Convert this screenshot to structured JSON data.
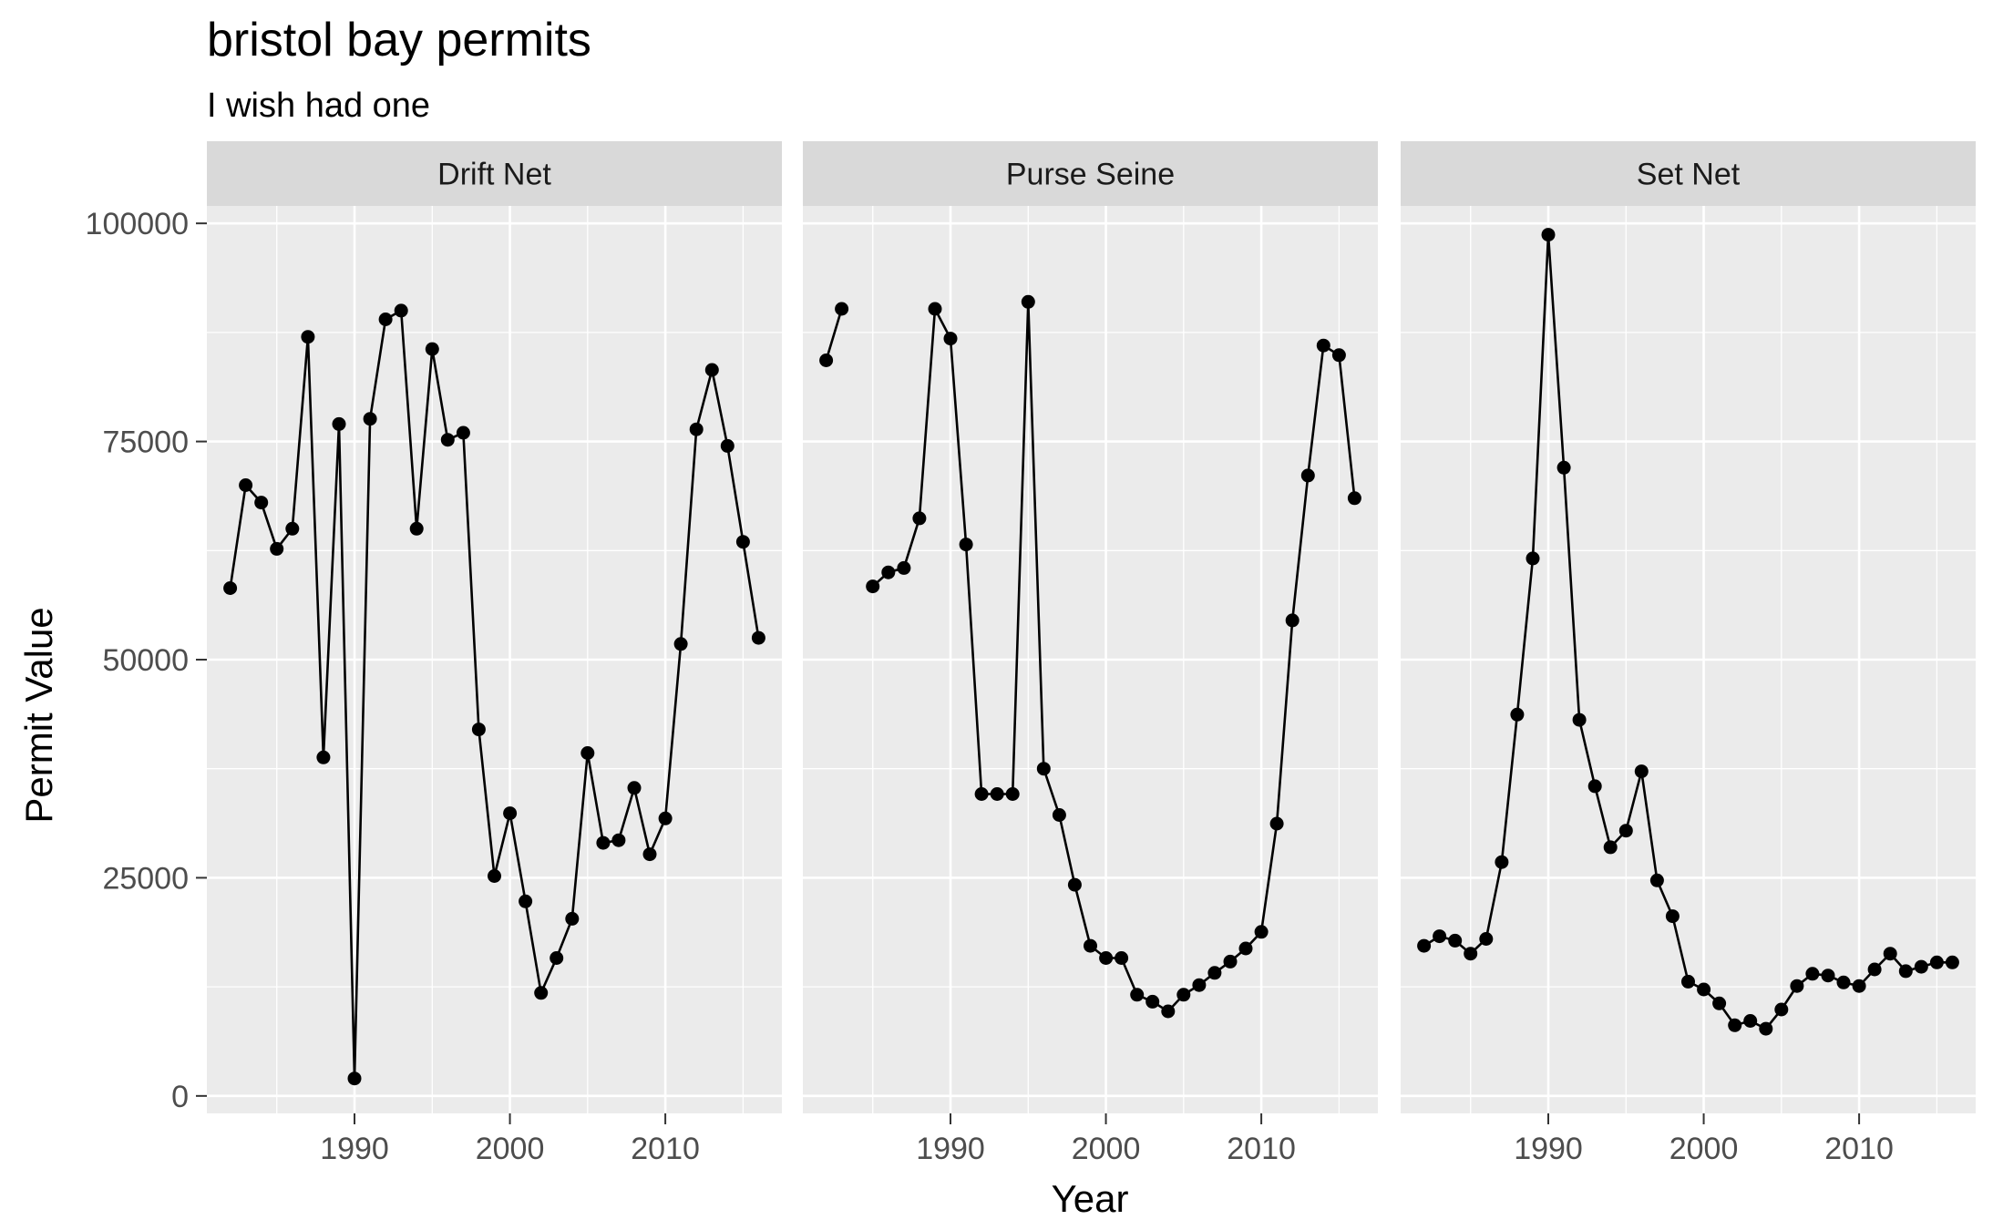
{
  "chart_data": {
    "type": "line",
    "title": "bristol bay permits",
    "subtitle": "I wish had one",
    "xlabel": "Year",
    "ylabel": "Permit Value",
    "xlim": [
      1980.5,
      2017.5
    ],
    "ylim": [
      -2000,
      102000
    ],
    "x_ticks": [
      1990,
      2000,
      2010
    ],
    "y_ticks": [
      0,
      25000,
      50000,
      75000,
      100000
    ],
    "grid": true,
    "facets": [
      {
        "label": "Drift Net",
        "x": [
          1982,
          1983,
          1984,
          1985,
          1986,
          1987,
          1988,
          1989,
          1990,
          1991,
          1992,
          1993,
          1994,
          1995,
          1996,
          1997,
          1998,
          1999,
          2000,
          2001,
          2002,
          2003,
          2004,
          2005,
          2006,
          2007,
          2008,
          2009,
          2010,
          2011,
          2012,
          2013,
          2014,
          2015,
          2016
        ],
        "y": [
          58200,
          70000,
          68000,
          62700,
          65000,
          87000,
          38800,
          77000,
          2000,
          77600,
          89000,
          90000,
          65000,
          85600,
          75200,
          76000,
          42000,
          25200,
          32400,
          22300,
          11800,
          15800,
          20300,
          39300,
          29000,
          29300,
          35300,
          27700,
          31800,
          51800,
          76400,
          83200,
          74500,
          63500,
          52500
        ]
      },
      {
        "label": "Purse Seine",
        "x": [
          1982,
          1983,
          1985,
          1986,
          1987,
          1988,
          1989,
          1990,
          1991,
          1992,
          1993,
          1994,
          1995,
          1996,
          1997,
          1998,
          1999,
          2000,
          2001,
          2002,
          2003,
          2004,
          2005,
          2006,
          2007,
          2008,
          2009,
          2010,
          2011,
          2012,
          2013,
          2014,
          2015,
          2016
        ],
        "y": [
          84300,
          90200,
          58400,
          60000,
          60500,
          66200,
          90200,
          86800,
          63200,
          34600,
          34600,
          34600,
          91000,
          37500,
          32200,
          24200,
          17200,
          15800,
          15800,
          11600,
          10800,
          9700,
          11600,
          12700,
          14100,
          15400,
          16900,
          18800,
          31200,
          54500,
          71100,
          86000,
          84900,
          68500
        ],
        "segments": [
          [
            0,
            1
          ],
          [
            2,
            33
          ]
        ]
      },
      {
        "label": "Set Net",
        "x": [
          1982,
          1983,
          1984,
          1985,
          1986,
          1987,
          1988,
          1989,
          1990,
          1991,
          1992,
          1993,
          1994,
          1995,
          1996,
          1997,
          1998,
          1999,
          2000,
          2001,
          2002,
          2003,
          2004,
          2005,
          2006,
          2007,
          2008,
          2009,
          2010,
          2011,
          2012,
          2013,
          2014,
          2015,
          2016
        ],
        "y": [
          17200,
          18300,
          17800,
          16300,
          18000,
          26800,
          43700,
          61600,
          98700,
          72000,
          43100,
          35500,
          28500,
          30400,
          37200,
          24700,
          20600,
          13100,
          12200,
          10600,
          8100,
          8600,
          7700,
          9900,
          12600,
          14000,
          13800,
          13000,
          12600,
          14500,
          16300,
          14300,
          14800,
          15300,
          15300
        ]
      }
    ]
  }
}
